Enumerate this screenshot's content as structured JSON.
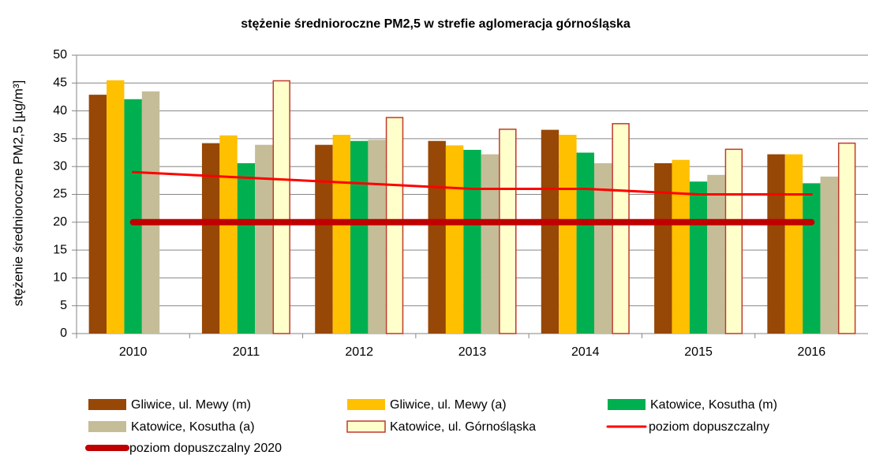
{
  "chart_data": {
    "type": "bar",
    "title": "stężenie średnioroczne PM2,5 w strefie aglomeracja górnośląska",
    "ylabel": "stężenie średnioroczne PM2,5 [µg/m³]",
    "categories": [
      "2010",
      "2011",
      "2012",
      "2013",
      "2014",
      "2015",
      "2016"
    ],
    "ylim": [
      0,
      50
    ],
    "yticks": [
      0,
      5,
      10,
      15,
      20,
      25,
      30,
      35,
      40,
      45,
      50
    ],
    "grid": true,
    "legend": "bottom",
    "series": [
      {
        "name": "Gliwice, ul. Mewy (m)",
        "type": "bar",
        "color": "#974706",
        "values": [
          42.9,
          34.2,
          33.9,
          34.6,
          36.6,
          30.6,
          32.2
        ]
      },
      {
        "name": "Gliwice, ul. Mewy (a)",
        "type": "bar",
        "color": "#ffc000",
        "values": [
          45.5,
          35.6,
          35.7,
          33.8,
          35.7,
          31.2,
          32.2
        ]
      },
      {
        "name": "Katowice, Kosutha (m)",
        "type": "bar",
        "color": "#00b050",
        "values": [
          42.1,
          30.6,
          34.6,
          33.0,
          32.5,
          27.3,
          27.0
        ]
      },
      {
        "name": "Katowice, Kosutha (a)",
        "type": "bar",
        "color": "#c4bd97",
        "values": [
          43.5,
          33.9,
          34.8,
          32.2,
          30.6,
          28.5,
          28.2
        ]
      },
      {
        "name": "Katowice, ul. Górnośląska",
        "type": "bar",
        "color": "#ffffcc",
        "edgecolor": "#c0392b",
        "values": [
          null,
          45.4,
          38.8,
          36.7,
          37.7,
          33.1,
          34.2
        ]
      },
      {
        "name": "poziom dopuszczalny",
        "type": "line",
        "color": "#ff0000",
        "values": [
          29,
          28,
          27,
          26,
          26,
          25,
          25
        ]
      },
      {
        "name": "poziom dopuszczalny 2020",
        "type": "line",
        "color": "#c00000",
        "values": [
          20,
          20,
          20,
          20,
          20,
          20,
          20
        ]
      }
    ]
  }
}
